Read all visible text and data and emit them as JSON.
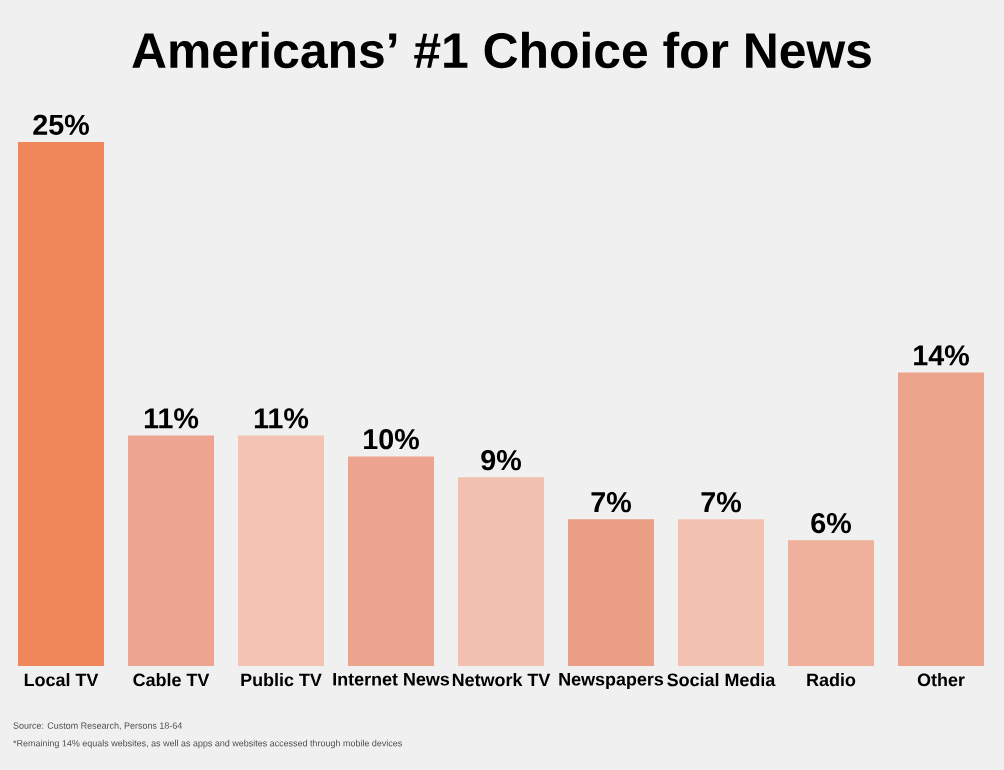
{
  "chart_data": {
    "type": "bar",
    "title": "Americans’ #1 Choice for News",
    "categories": [
      "Local TV",
      "Cable TV",
      "Public TV",
      "Internet News",
      "Network TV",
      "Newspapers",
      "Social Media",
      "Radio",
      "Other"
    ],
    "values": [
      25,
      11,
      11,
      10,
      9,
      7,
      7,
      6,
      14
    ],
    "value_labels": [
      "25%",
      "11%",
      "11%",
      "10%",
      "9%",
      "7%",
      "7%",
      "6%",
      "14%"
    ],
    "colors": [
      "#f0875a",
      "#eda592",
      "#f3c4b4",
      "#eca48e",
      "#f2c0ae",
      "#eb9e86",
      "#f3c2b1",
      "#efb09c",
      "#eca48c"
    ],
    "annotations": [
      "Source: Custom Research, Persons 18-64",
      "*Remaining 14% equals websites, as well as apps and websites accessed through mobile devices"
    ]
  }
}
